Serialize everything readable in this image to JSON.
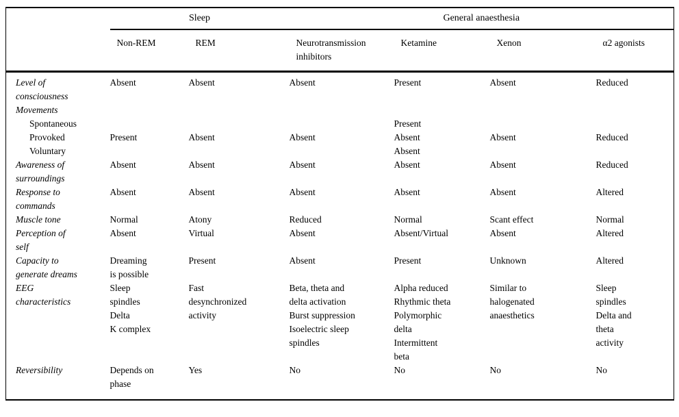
{
  "table": {
    "group_headers": [
      {
        "label": "Sleep",
        "span": 2
      },
      {
        "label": "General anaesthesia",
        "span": 4
      }
    ],
    "column_headers": [
      "Non-REM",
      "REM",
      "Neurotransmission\ninhibitors",
      "Ketamine",
      "Xenon",
      "α2 agonists"
    ],
    "rows": [
      {
        "label": "Level of\nconsciousness",
        "indent": false,
        "cells": [
          "Absent",
          "Absent",
          "Absent",
          "Present",
          "Absent",
          "Reduced"
        ]
      },
      {
        "label": "Movements",
        "indent": false,
        "cells": [
          "",
          "",
          "",
          "",
          "",
          ""
        ]
      },
      {
        "label": "Spontaneous",
        "indent": true,
        "cells": [
          "",
          "",
          "",
          "Present",
          "",
          ""
        ]
      },
      {
        "label": "Provoked",
        "indent": true,
        "cells": [
          "Present",
          "Absent",
          "Absent",
          "Absent",
          "Absent",
          "Reduced"
        ]
      },
      {
        "label": "Voluntary",
        "indent": true,
        "cells": [
          "",
          "",
          "",
          "Absent",
          "",
          ""
        ]
      },
      {
        "label": "Awareness of\nsurroundings",
        "indent": false,
        "cells": [
          "Absent",
          "Absent",
          "Absent",
          "Absent",
          "Absent",
          "Reduced"
        ]
      },
      {
        "label": "Response to\ncommands",
        "indent": false,
        "cells": [
          "Absent",
          "Absent",
          "Absent",
          "Absent",
          "Absent",
          "Altered"
        ]
      },
      {
        "label": "Muscle tone",
        "indent": false,
        "cells": [
          "Normal",
          "Atony",
          "Reduced",
          "Normal",
          "Scant effect",
          "Normal"
        ]
      },
      {
        "label": "Perception of\nself",
        "indent": false,
        "cells": [
          "Absent",
          "Virtual",
          "Absent",
          "Absent/Virtual",
          "Absent",
          "Altered"
        ]
      },
      {
        "label": "Capacity to\ngenerate dreams",
        "indent": false,
        "cells": [
          "Dreaming\nis possible",
          "Present",
          "Absent",
          "Present",
          "Unknown",
          "Altered"
        ]
      },
      {
        "label": "EEG\ncharacteristics",
        "indent": false,
        "cells": [
          "Sleep\nspindles\nDelta\nK complex",
          "Fast\ndesynchronized\nactivity",
          "Beta, theta and\ndelta activation\nBurst suppression\nIsoelectric sleep\nspindles",
          "Alpha reduced\nRhythmic theta\nPolymorphic\ndelta\nIntermittent\nbeta",
          "Similar to\nhalogenated\nanaesthetics",
          "Sleep\nspindles\nDelta and\ntheta\nactivity"
        ]
      },
      {
        "label": "Reversibility",
        "indent": false,
        "cells": [
          "Depends on\nphase",
          "Yes",
          "No",
          "No",
          "No",
          "No"
        ]
      }
    ]
  }
}
